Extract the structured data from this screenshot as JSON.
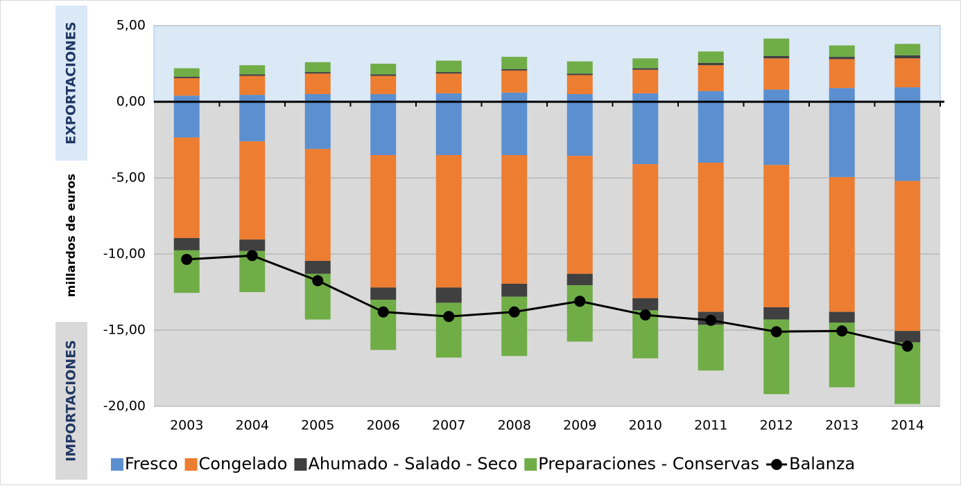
{
  "chart_data": {
    "type": "bar",
    "annotations": [
      "EXPORTACIONES",
      "IMPORTACIONES"
    ],
    "y_label": "millardos de euros",
    "categories": [
      "2003",
      "2004",
      "2005",
      "2006",
      "2007",
      "2008",
      "2009",
      "2010",
      "2011",
      "2012",
      "2013",
      "2014"
    ],
    "stacked": true,
    "series": [
      {
        "name": "Fresco",
        "color": "#5b8fd0",
        "values": [
          0.4,
          0.45,
          0.5,
          0.5,
          0.55,
          0.6,
          0.5,
          0.55,
          0.7,
          0.8,
          0.9,
          0.95
        ],
        "import_values": [
          -2.35,
          -2.6,
          -3.1,
          -3.5,
          -3.5,
          -3.5,
          -3.55,
          -4.1,
          -4.0,
          -4.15,
          -4.95,
          -5.2
        ]
      },
      {
        "name": "Congelado",
        "color": "#ed7d31",
        "values": [
          1.15,
          1.25,
          1.35,
          1.2,
          1.3,
          1.45,
          1.25,
          1.55,
          1.7,
          2.05,
          1.9,
          1.9
        ],
        "import_values": [
          -6.6,
          -6.45,
          -7.35,
          -8.7,
          -8.7,
          -8.45,
          -7.75,
          -8.8,
          -9.8,
          -9.35,
          -8.85,
          -9.85
        ]
      },
      {
        "name": "Ahumado - Salado - Seco",
        "color": "#404040",
        "values": [
          0.1,
          0.1,
          0.1,
          0.1,
          0.1,
          0.1,
          0.1,
          0.1,
          0.15,
          0.15,
          0.15,
          0.2
        ],
        "import_values": [
          -0.8,
          -0.75,
          -0.85,
          -0.8,
          -1.0,
          -0.85,
          -0.75,
          -0.8,
          -0.85,
          -0.8,
          -0.7,
          -0.75
        ]
      },
      {
        "name": "Preparaciones - Conservas",
        "color": "#70ad47",
        "values": [
          0.55,
          0.6,
          0.65,
          0.7,
          0.75,
          0.8,
          0.8,
          0.65,
          0.75,
          1.15,
          0.75,
          0.75
        ],
        "import_values": [
          -2.8,
          -2.7,
          -3.0,
          -3.3,
          -3.6,
          -3.9,
          -3.7,
          -3.15,
          -3.0,
          -4.9,
          -4.25,
          -4.05
        ]
      },
      {
        "name": "Balanza",
        "color": "#000000",
        "type": "line",
        "values": [
          -10.35,
          -10.1,
          -11.75,
          -13.8,
          -14.1,
          -13.8,
          -13.1,
          -14.0,
          -14.35,
          -15.1,
          -15.05,
          -16.05
        ]
      }
    ],
    "ylim": [
      -20,
      5
    ],
    "yticks": [
      {
        "value": -20,
        "label": "-20,00"
      },
      {
        "value": -15,
        "label": "-15,00"
      },
      {
        "value": -10,
        "label": "-10,00"
      },
      {
        "value": -5,
        "label": "-5,00"
      },
      {
        "value": 0,
        "label": "0,00"
      },
      {
        "value": 5,
        "label": "5,00"
      }
    ],
    "grid": true,
    "legend": "bottom"
  }
}
